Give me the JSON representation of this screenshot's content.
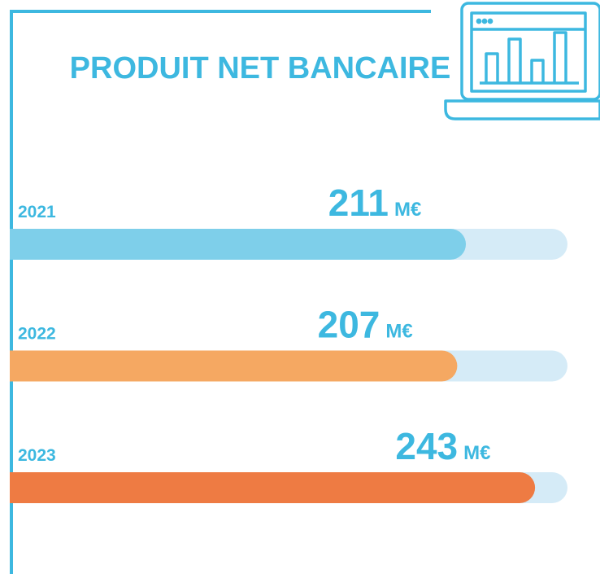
{
  "chart_data": {
    "type": "bar",
    "orientation": "horizontal",
    "title": "PRODUIT NET BANCAIRE",
    "unit": "M€",
    "categories": [
      "2021",
      "2022",
      "2023"
    ],
    "values": [
      211,
      207,
      243
    ],
    "colors": [
      "#7ecfea",
      "#f5a862",
      "#ee7b43"
    ],
    "track_color": "#d5ebf7",
    "xlim": [
      0,
      258
    ]
  }
}
